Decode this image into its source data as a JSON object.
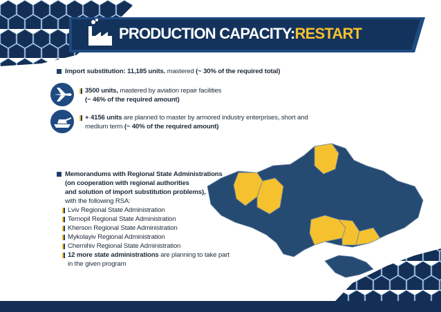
{
  "header": {
    "title": "PRODUCTION CAPACITY:",
    "accent": "RESTART"
  },
  "import": {
    "lines": [
      [
        {
          "text": "Import substitution: 11,185 units.",
          "bold": true
        },
        {
          "text": " mastered ",
          "bold": false
        },
        {
          "text": "(~ 30% of the required total)",
          "bold": true
        }
      ]
    ]
  },
  "items": [
    {
      "lines": [
        [
          {
            "text": "3500 units,",
            "bold": true
          },
          {
            "text": " mastered by aviation repair facilities",
            "bold": false
          }
        ],
        [
          {
            "text": "(~ 46% of the required amount)",
            "bold": true
          }
        ]
      ]
    },
    {
      "lines": [
        [
          {
            "text": "+ 4156 units",
            "bold": true
          },
          {
            "text": " are planned to master by armored industry enterprises, short and",
            "bold": false
          }
        ],
        [
          {
            "text": "medium term ",
            "bold": false
          },
          {
            "text": "(~ 40% of the required amount)",
            "bold": true
          }
        ]
      ]
    }
  ],
  "memorandums": {
    "heading": {
      "lines": [
        [
          {
            "text": "Memorandums with Regional State Administrations",
            "bold": true
          }
        ],
        [
          {
            "text": "(on cooperation with regional authorities",
            "bold": true
          }
        ],
        [
          {
            "text": "and solution of import substitution problems),",
            "bold": true
          }
        ],
        [
          {
            "text": "with the following RSA:",
            "bold": false
          }
        ]
      ]
    },
    "list": [
      "Lviv Regional State Administration",
      "Ternopil Regional State Administration",
      "Kherson Regional State Administration",
      "Mykolayiv Regional Administration",
      "Chernihiv Regional State Administration"
    ],
    "more": {
      "lines": [
        [
          {
            "text": "12 more state administrations",
            "bold": true
          },
          {
            "text": " are planning to take part",
            "bold": false
          }
        ],
        [
          {
            "text": "in the given program",
            "bold": false
          }
        ]
      ]
    }
  }
}
